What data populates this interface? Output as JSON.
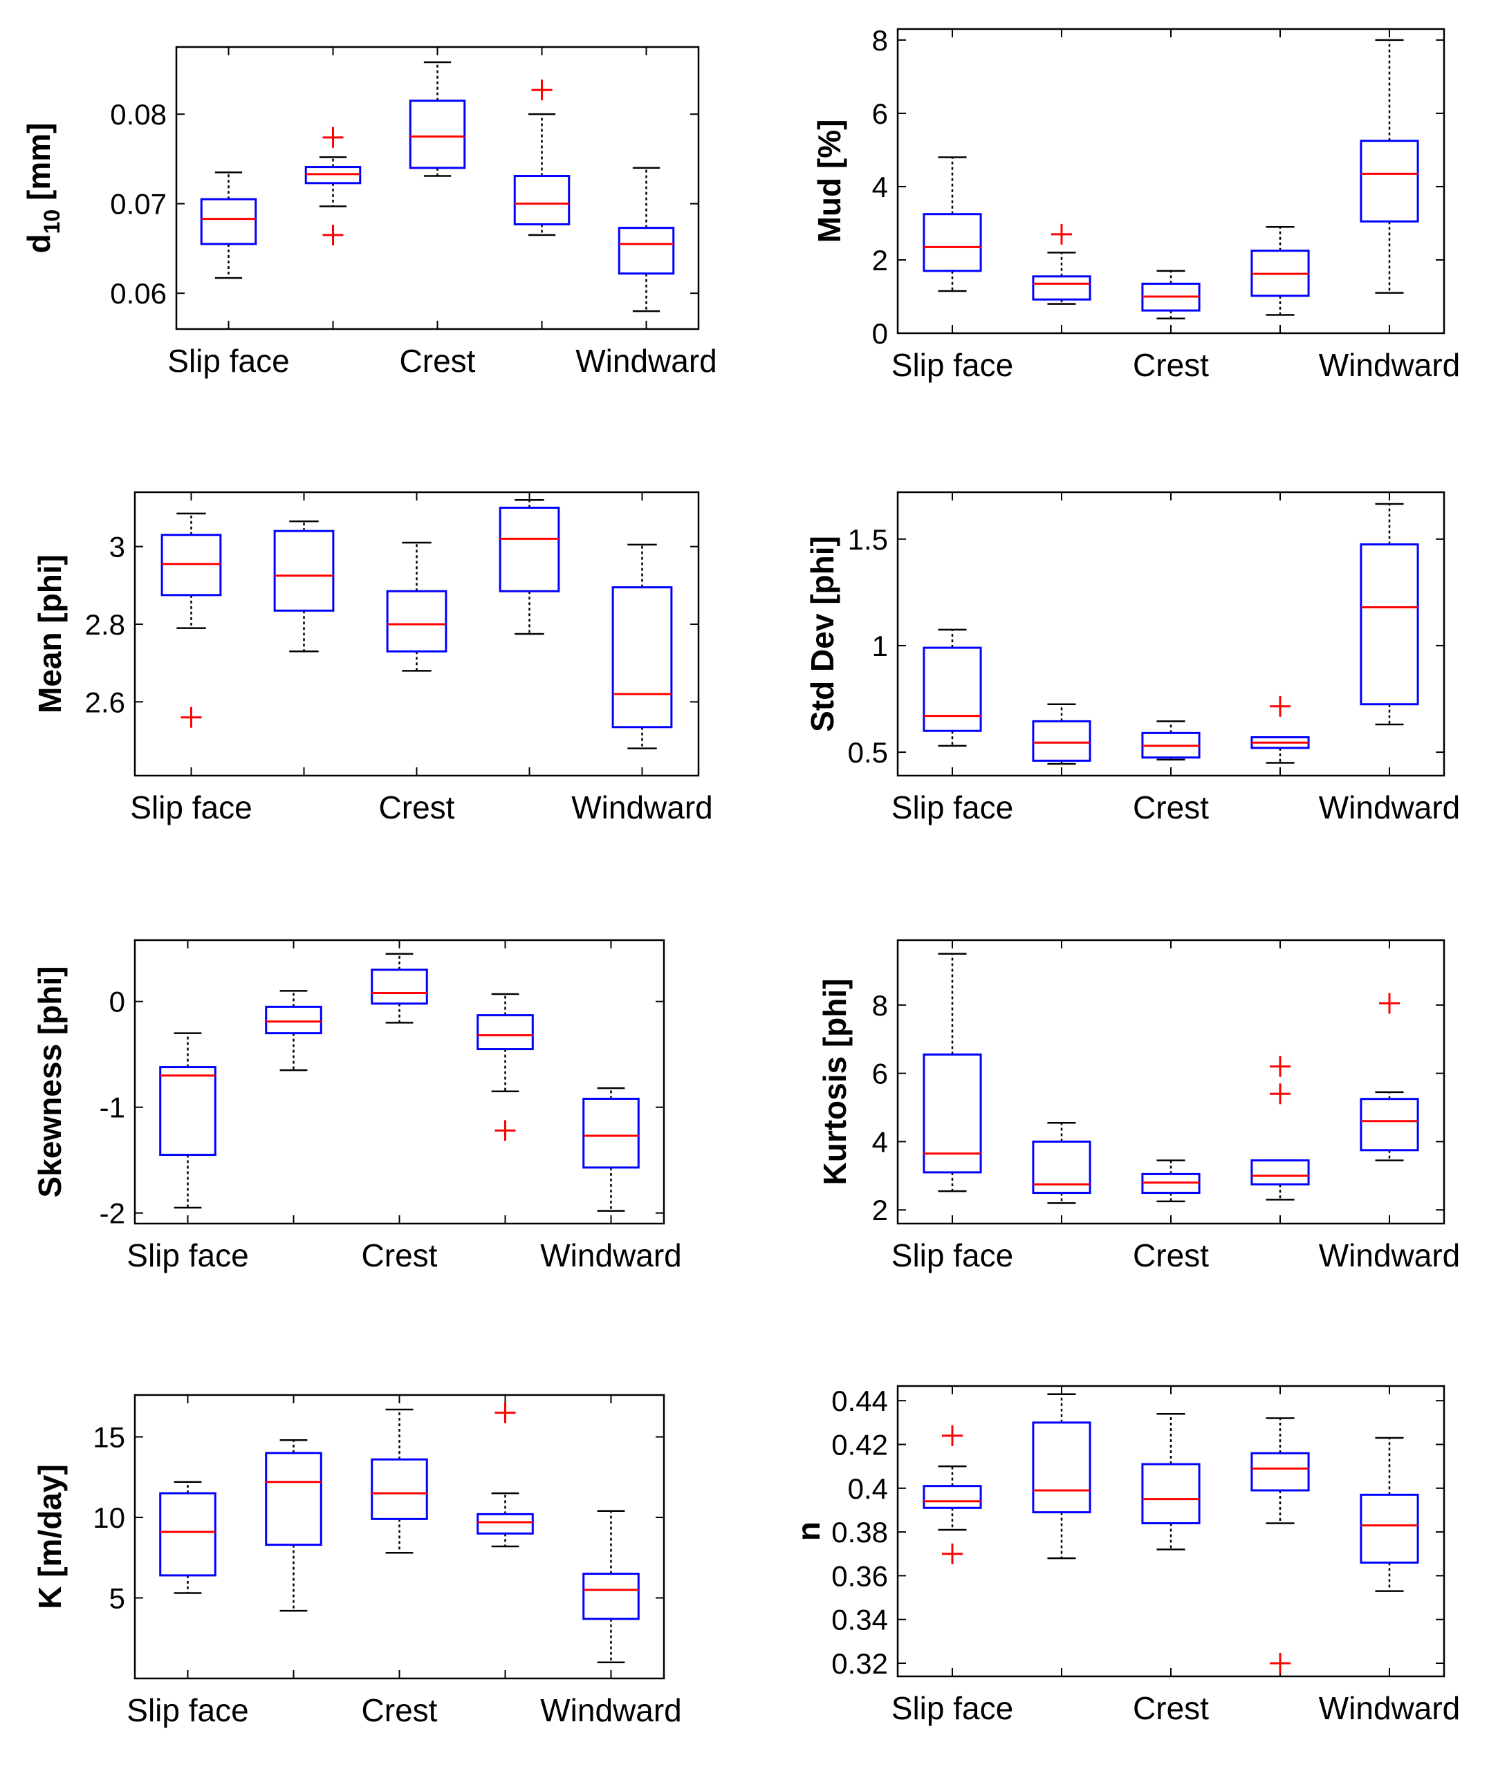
{
  "chart_data": [
    {
      "type": "box",
      "id": "d10",
      "ylabel": "d",
      "ylabel_sub": "10",
      "ylabel_unit": " [mm]",
      "categories": [
        "Slip face",
        "",
        "Crest",
        "",
        "Windward"
      ],
      "ylim": [
        0.056,
        0.0875
      ],
      "yticks": [
        0.06,
        0.07,
        0.08
      ],
      "ytick_labels": [
        "0.06",
        "0.07",
        "0.08"
      ],
      "boxes": [
        {
          "wlo": 0.0617,
          "q1": 0.0655,
          "med": 0.0683,
          "q3": 0.0705,
          "whi": 0.0735,
          "outliers": []
        },
        {
          "wlo": 0.0697,
          "q1": 0.0723,
          "med": 0.0733,
          "q3": 0.0741,
          "whi": 0.0752,
          "outliers": [
            0.0774,
            0.0665
          ]
        },
        {
          "wlo": 0.0731,
          "q1": 0.074,
          "med": 0.0775,
          "q3": 0.0815,
          "whi": 0.0858,
          "outliers": []
        },
        {
          "wlo": 0.0665,
          "q1": 0.0677,
          "med": 0.07,
          "q3": 0.0731,
          "whi": 0.08,
          "outliers": [
            0.0827
          ]
        },
        {
          "wlo": 0.058,
          "q1": 0.0622,
          "med": 0.0655,
          "q3": 0.0673,
          "whi": 0.074,
          "outliers": []
        }
      ]
    },
    {
      "type": "box",
      "id": "mud",
      "ylabel": "Mud [%]",
      "categories": [
        "Slip face",
        "",
        "Crest",
        "",
        "Windward"
      ],
      "ylim": [
        0,
        8.3
      ],
      "yticks": [
        0,
        2,
        4,
        6,
        8
      ],
      "ytick_labels": [
        "0",
        "2",
        "4",
        "6",
        "8"
      ],
      "boxes": [
        {
          "wlo": 1.15,
          "q1": 1.7,
          "med": 2.35,
          "q3": 3.25,
          "whi": 4.8,
          "outliers": []
        },
        {
          "wlo": 0.8,
          "q1": 0.92,
          "med": 1.35,
          "q3": 1.55,
          "whi": 2.2,
          "outliers": [
            2.7
          ]
        },
        {
          "wlo": 0.4,
          "q1": 0.62,
          "med": 1.0,
          "q3": 1.35,
          "whi": 1.7,
          "outliers": []
        },
        {
          "wlo": 0.5,
          "q1": 1.02,
          "med": 1.62,
          "q3": 2.25,
          "whi": 2.9,
          "outliers": []
        },
        {
          "wlo": 1.1,
          "q1": 3.05,
          "med": 4.35,
          "q3": 5.25,
          "whi": 8.0,
          "outliers": []
        }
      ]
    },
    {
      "type": "box",
      "id": "mean",
      "ylabel": "Mean [phi]",
      "categories": [
        "Slip face",
        "",
        "Crest",
        "",
        "Windward"
      ],
      "ylim": [
        2.41,
        3.14
      ],
      "yticks": [
        2.6,
        2.8,
        3.0
      ],
      "ytick_labels": [
        "2.6",
        "2.8",
        "3"
      ],
      "boxes": [
        {
          "wlo": 2.79,
          "q1": 2.875,
          "med": 2.955,
          "q3": 3.03,
          "whi": 3.085,
          "outliers": [
            2.56
          ]
        },
        {
          "wlo": 2.73,
          "q1": 2.835,
          "med": 2.925,
          "q3": 3.04,
          "whi": 3.065,
          "outliers": []
        },
        {
          "wlo": 2.68,
          "q1": 2.73,
          "med": 2.8,
          "q3": 2.885,
          "whi": 3.01,
          "outliers": []
        },
        {
          "wlo": 2.775,
          "q1": 2.885,
          "med": 3.02,
          "q3": 3.1,
          "whi": 3.12,
          "outliers": []
        },
        {
          "wlo": 2.48,
          "q1": 2.535,
          "med": 2.62,
          "q3": 2.895,
          "whi": 3.005,
          "outliers": []
        }
      ]
    },
    {
      "type": "box",
      "id": "stddev",
      "ylabel": "Std Dev [phi]",
      "categories": [
        "Slip face",
        "",
        "Crest",
        "",
        "Windward"
      ],
      "ylim": [
        0.39,
        1.72
      ],
      "yticks": [
        0.5,
        1.0,
        1.5
      ],
      "ytick_labels": [
        "0.5",
        "1",
        "1.5"
      ],
      "boxes": [
        {
          "wlo": 0.53,
          "q1": 0.6,
          "med": 0.67,
          "q3": 0.99,
          "whi": 1.075,
          "outliers": []
        },
        {
          "wlo": 0.445,
          "q1": 0.46,
          "med": 0.545,
          "q3": 0.645,
          "whi": 0.725,
          "outliers": []
        },
        {
          "wlo": 0.465,
          "q1": 0.475,
          "med": 0.53,
          "q3": 0.59,
          "whi": 0.645,
          "outliers": []
        },
        {
          "wlo": 0.45,
          "q1": 0.52,
          "med": 0.545,
          "q3": 0.57,
          "whi": 0.57,
          "outliers": [
            0.715
          ]
        },
        {
          "wlo": 0.63,
          "q1": 0.725,
          "med": 1.18,
          "q3": 1.475,
          "whi": 1.665,
          "outliers": []
        }
      ]
    },
    {
      "type": "box",
      "id": "skewness",
      "ylabel": "Skewness [phi]",
      "categories": [
        "Slip face",
        "",
        "Crest",
        "",
        "Windward"
      ],
      "ylim": [
        -2.1,
        0.58
      ],
      "yticks": [
        -2,
        -1,
        0
      ],
      "ytick_labels": [
        "-2",
        "-1",
        "0"
      ],
      "boxes": [
        {
          "wlo": -1.95,
          "q1": -1.45,
          "med": -0.7,
          "q3": -0.62,
          "whi": -0.3,
          "outliers": []
        },
        {
          "wlo": -0.65,
          "q1": -0.3,
          "med": -0.19,
          "q3": -0.05,
          "whi": 0.1,
          "outliers": []
        },
        {
          "wlo": -0.2,
          "q1": -0.02,
          "med": 0.08,
          "q3": 0.3,
          "whi": 0.45,
          "outliers": []
        },
        {
          "wlo": -0.85,
          "q1": -0.45,
          "med": -0.32,
          "q3": -0.13,
          "whi": 0.07,
          "outliers": [
            -1.22
          ]
        },
        {
          "wlo": -1.98,
          "q1": -1.57,
          "med": -1.27,
          "q3": -0.92,
          "whi": -0.82,
          "outliers": []
        }
      ]
    },
    {
      "type": "box",
      "id": "kurtosis",
      "ylabel": "Kurtosis [phi]",
      "categories": [
        "Slip face",
        "",
        "Crest",
        "",
        "Windward"
      ],
      "ylim": [
        1.6,
        9.9
      ],
      "yticks": [
        2,
        4,
        6,
        8
      ],
      "ytick_labels": [
        "2",
        "4",
        "6",
        "8"
      ],
      "boxes": [
        {
          "wlo": 2.55,
          "q1": 3.1,
          "med": 3.65,
          "q3": 6.55,
          "whi": 9.5,
          "outliers": []
        },
        {
          "wlo": 2.2,
          "q1": 2.5,
          "med": 2.75,
          "q3": 4.0,
          "whi": 4.55,
          "outliers": []
        },
        {
          "wlo": 2.25,
          "q1": 2.5,
          "med": 2.8,
          "q3": 3.05,
          "whi": 3.45,
          "outliers": []
        },
        {
          "wlo": 2.3,
          "q1": 2.75,
          "med": 3.0,
          "q3": 3.45,
          "whi": 3.45,
          "outliers": [
            6.2,
            5.4
          ]
        },
        {
          "wlo": 3.45,
          "q1": 3.75,
          "med": 4.6,
          "q3": 5.25,
          "whi": 5.45,
          "outliers": [
            8.05
          ]
        }
      ]
    },
    {
      "type": "box",
      "id": "k",
      "ylabel": "K [m/day]",
      "categories": [
        "Slip face",
        "",
        "Crest",
        "",
        "Windward"
      ],
      "ylim": [
        0,
        17.6
      ],
      "yticks": [
        5,
        10,
        15
      ],
      "ytick_labels": [
        "5",
        "10",
        "15"
      ],
      "boxes": [
        {
          "wlo": 5.3,
          "q1": 6.4,
          "med": 9.1,
          "q3": 11.5,
          "whi": 12.2,
          "outliers": []
        },
        {
          "wlo": 4.2,
          "q1": 8.3,
          "med": 12.2,
          "q3": 14.0,
          "whi": 14.8,
          "outliers": []
        },
        {
          "wlo": 7.8,
          "q1": 9.9,
          "med": 11.5,
          "q3": 13.6,
          "whi": 16.7,
          "outliers": []
        },
        {
          "wlo": 8.2,
          "q1": 9.0,
          "med": 9.7,
          "q3": 10.2,
          "whi": 11.5,
          "outliers": [
            16.5
          ]
        },
        {
          "wlo": 1.0,
          "q1": 3.7,
          "med": 5.5,
          "q3": 6.5,
          "whi": 10.4,
          "outliers": []
        }
      ]
    },
    {
      "type": "box",
      "id": "n",
      "ylabel": "n",
      "categories": [
        "Slip face",
        "",
        "Crest",
        "",
        "Windward"
      ],
      "ylim": [
        0.314,
        0.4467
      ],
      "yticks": [
        0.32,
        0.34,
        0.36,
        0.38,
        0.4,
        0.42,
        0.44
      ],
      "ytick_labels": [
        "0.32",
        "0.34",
        "0.36",
        "0.38",
        "0.4",
        "0.42",
        "0.44"
      ],
      "boxes": [
        {
          "wlo": 0.381,
          "q1": 0.391,
          "med": 0.394,
          "q3": 0.401,
          "whi": 0.41,
          "outliers": [
            0.424,
            0.37
          ]
        },
        {
          "wlo": 0.368,
          "q1": 0.389,
          "med": 0.399,
          "q3": 0.43,
          "whi": 0.443,
          "outliers": []
        },
        {
          "wlo": 0.372,
          "q1": 0.384,
          "med": 0.395,
          "q3": 0.411,
          "whi": 0.434,
          "outliers": []
        },
        {
          "wlo": 0.384,
          "q1": 0.399,
          "med": 0.409,
          "q3": 0.416,
          "whi": 0.432,
          "outliers": [
            0.32
          ]
        },
        {
          "wlo": 0.353,
          "q1": 0.366,
          "med": 0.383,
          "q3": 0.397,
          "whi": 0.423,
          "outliers": []
        }
      ]
    }
  ],
  "colors": {
    "box": "#0000ff",
    "median": "#ff0000",
    "outlier": "#ff0000",
    "whisker": "#000000"
  }
}
